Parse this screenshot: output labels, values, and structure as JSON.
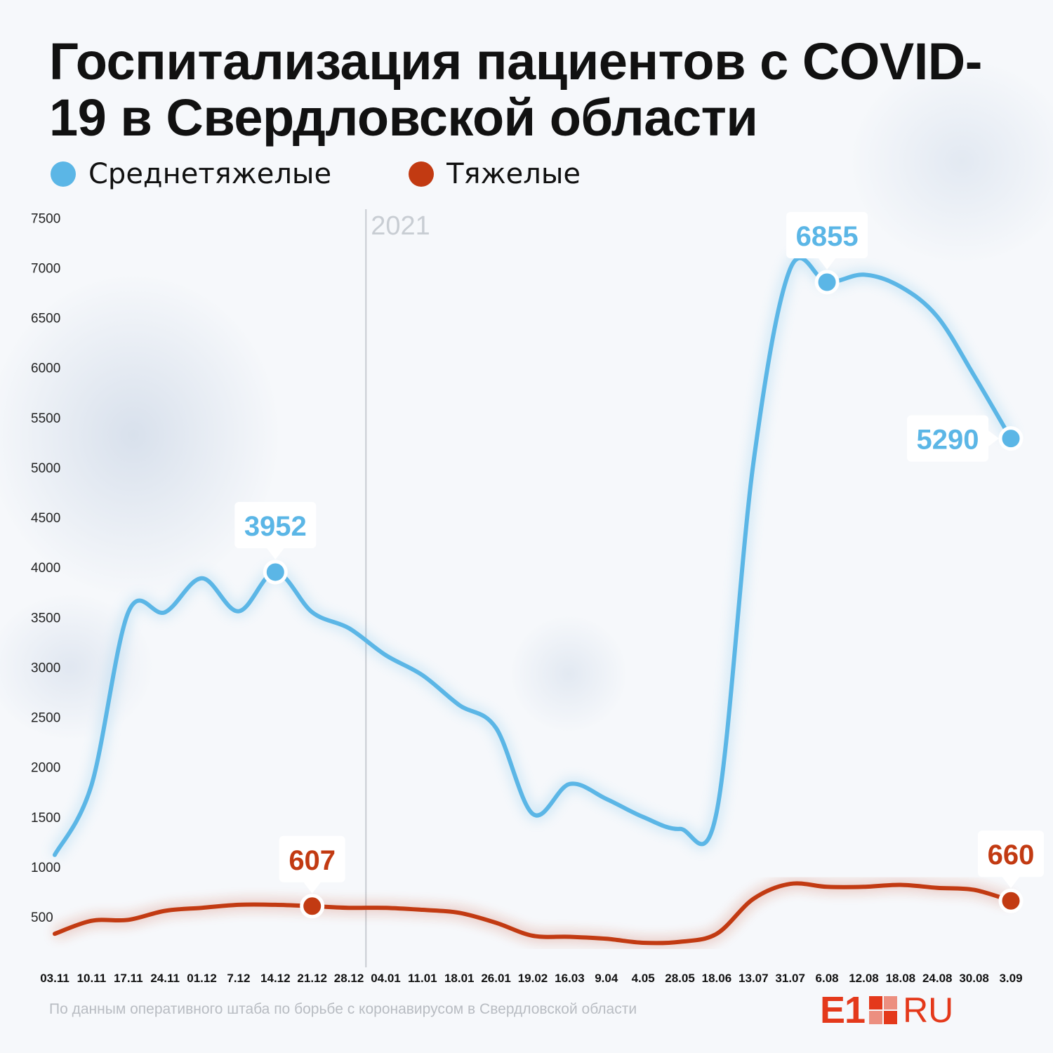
{
  "title": "Госпитализация пациентов с COVID-19 в Свердловской области",
  "legend": [
    {
      "label": "Среднетяжелые",
      "color": "#5bb6e6"
    },
    {
      "label": "Тяжелые",
      "color": "#c23a12"
    }
  ],
  "source": "По данным оперативного штаба по борьбе с коронавирусом в Свердловской области",
  "logo": {
    "left": "E1",
    "right": "RU",
    "color": "#e4391b"
  },
  "chart_data": {
    "type": "line",
    "title": "Госпитализация пациентов с COVID-19 в Свердловской области",
    "x": [
      "03.11",
      "10.11",
      "17.11",
      "24.11",
      "01.12",
      "7.12",
      "14.12",
      "21.12",
      "28.12",
      "04.01",
      "11.01",
      "18.01",
      "26.01",
      "19.02",
      "16.03",
      "9.04",
      "4.05",
      "28.05",
      "18.06",
      "13.07",
      "31.07",
      "6.08",
      "12.08",
      "18.08",
      "24.08",
      "30.08",
      "3.09"
    ],
    "yticks": [
      500,
      1000,
      1500,
      2000,
      2500,
      3000,
      3500,
      4000,
      4500,
      5000,
      5500,
      6000,
      6500,
      7000,
      7500
    ],
    "ylim": [
      140,
      7500
    ],
    "series": [
      {
        "name": "Среднетяжелые",
        "color": "#5bb6e6",
        "values": [
          1120,
          1820,
          3550,
          3550,
          3890,
          3560,
          3952,
          3550,
          3390,
          3120,
          2920,
          2620,
          2390,
          1530,
          1830,
          1680,
          1500,
          1380,
          1550,
          5050,
          6990,
          6855,
          6930,
          6810,
          6510,
          5920,
          5290
        ]
      },
      {
        "name": "Тяжелые",
        "color": "#c23a12",
        "values": [
          330,
          460,
          470,
          560,
          590,
          620,
          620,
          607,
          590,
          590,
          570,
          540,
          440,
          310,
          300,
          280,
          240,
          250,
          330,
          680,
          830,
          800,
          800,
          820,
          790,
          770,
          660
        ]
      }
    ],
    "annotations": [
      {
        "series": 0,
        "index": 6,
        "label": "3952",
        "position": "above"
      },
      {
        "series": 0,
        "index": 21,
        "label": "6855",
        "position": "above"
      },
      {
        "series": 0,
        "index": 26,
        "label": "5290",
        "position": "left"
      },
      {
        "series": 1,
        "index": 7,
        "label": "607",
        "position": "above"
      },
      {
        "series": 1,
        "index": 26,
        "label": "660",
        "position": "above"
      }
    ],
    "year_marker": {
      "label": "2021",
      "after_index": 8
    },
    "grid": false
  }
}
